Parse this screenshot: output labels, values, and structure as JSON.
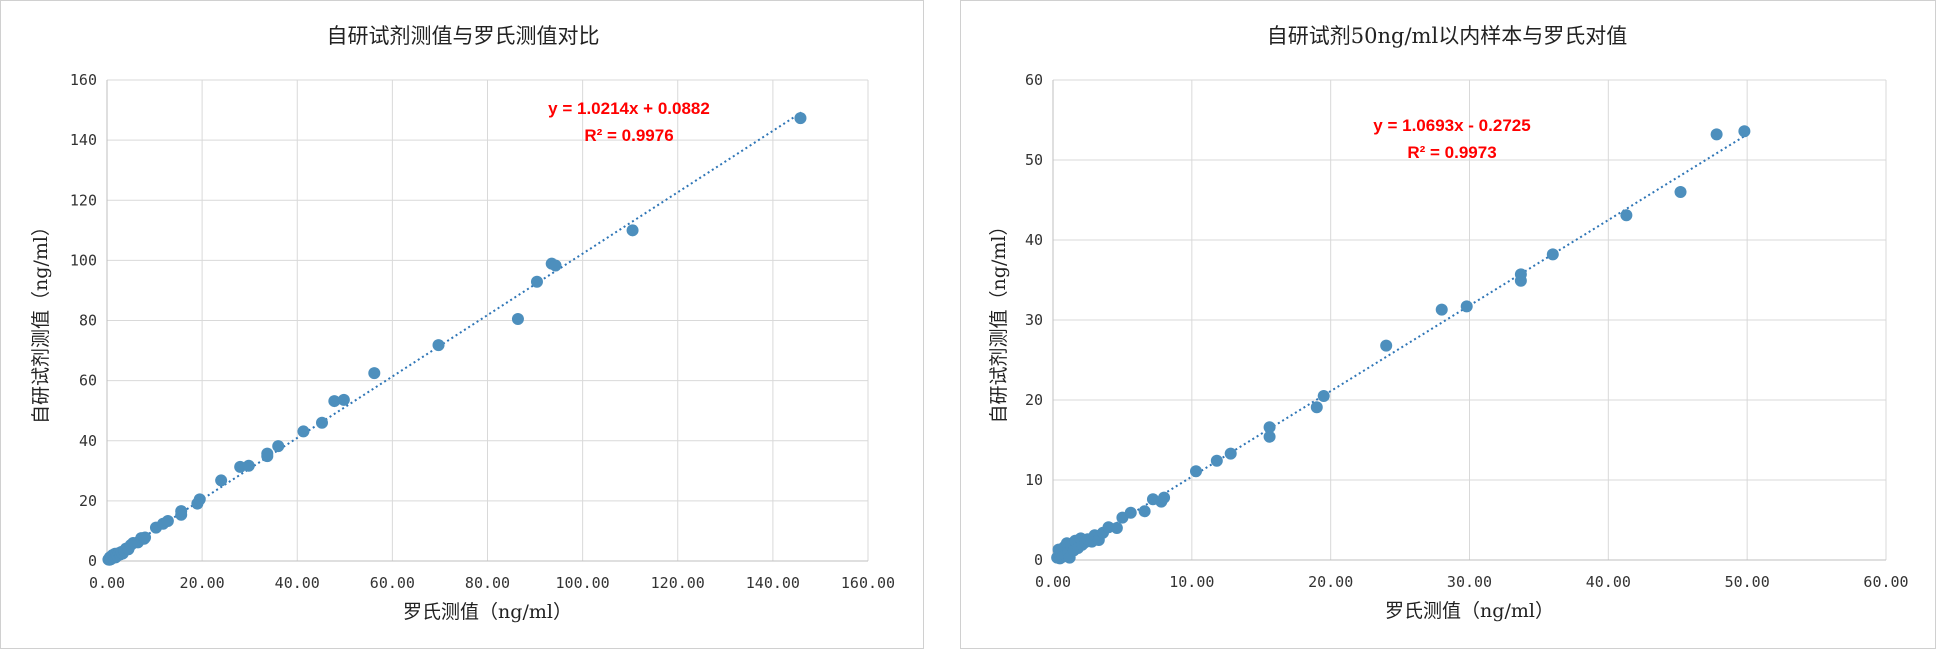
{
  "chart_data": [
    {
      "type": "scatter",
      "title": "自研试剂测值与罗氏测值对比",
      "xlabel": "罗氏测值（ng/ml）",
      "ylabel": "自研试剂测值（ng/ml）",
      "xlim": [
        0,
        160
      ],
      "ylim": [
        0,
        160
      ],
      "xticks": [
        0,
        20,
        40,
        60,
        80,
        100,
        120,
        140,
        160
      ],
      "xtick_labels": [
        "0.00",
        "20.00",
        "40.00",
        "60.00",
        "80.00",
        "100.00",
        "120.00",
        "140.00",
        "160.00"
      ],
      "yticks": [
        0,
        20,
        40,
        60,
        80,
        100,
        120,
        140,
        160
      ],
      "ytick_labels": [
        "0",
        "20",
        "40",
        "60",
        "80",
        "100",
        "120",
        "140",
        "160"
      ],
      "grid": true,
      "trendline": {
        "slope": 1.0214,
        "intercept": 0.0882,
        "x_range": [
          0,
          146
        ]
      },
      "equation": "y = 1.0214x + 0.0882",
      "r_squared": "R² = 0.9976",
      "marker_color": "#4d8fbd",
      "trend_color": "#2e75b6",
      "points": [
        [
          0.3,
          0.5
        ],
        [
          0.5,
          0.4
        ],
        [
          0.6,
          1.2
        ],
        [
          0.8,
          0.6
        ],
        [
          0.9,
          1.5
        ],
        [
          1.0,
          0.9
        ],
        [
          1.2,
          2.0
        ],
        [
          1.3,
          1.1
        ],
        [
          1.5,
          1.6
        ],
        [
          1.7,
          2.4
        ],
        [
          1.8,
          1.2
        ],
        [
          2.0,
          2.2
        ],
        [
          2.2,
          1.8
        ],
        [
          2.5,
          2.6
        ],
        [
          2.8,
          2.2
        ],
        [
          3.0,
          3.0
        ],
        [
          3.3,
          2.5
        ],
        [
          3.6,
          3.3
        ],
        [
          4.0,
          4.1
        ],
        [
          4.5,
          3.9
        ],
        [
          5.0,
          5.3
        ],
        [
          5.5,
          6.0
        ],
        [
          6.5,
          6.2
        ],
        [
          7.2,
          7.6
        ],
        [
          7.8,
          7.4
        ],
        [
          8.0,
          7.8
        ],
        [
          10.3,
          11.1
        ],
        [
          11.8,
          12.4
        ],
        [
          12.8,
          13.3
        ],
        [
          15.6,
          15.4
        ],
        [
          15.6,
          16.6
        ],
        [
          19.0,
          19.1
        ],
        [
          19.5,
          20.5
        ],
        [
          24.0,
          26.8
        ],
        [
          28.0,
          31.3
        ],
        [
          29.8,
          31.7
        ],
        [
          33.7,
          34.9
        ],
        [
          33.7,
          35.7
        ],
        [
          36.0,
          38.2
        ],
        [
          41.3,
          43.1
        ],
        [
          45.2,
          46.0
        ],
        [
          47.8,
          53.2
        ],
        [
          49.8,
          53.6
        ],
        [
          56.2,
          62.5
        ],
        [
          69.7,
          71.8
        ],
        [
          86.4,
          80.5
        ],
        [
          90.4,
          92.9
        ],
        [
          93.5,
          98.9
        ],
        [
          94.3,
          98.3
        ],
        [
          110.5,
          110.0
        ],
        [
          145.8,
          147.3
        ]
      ]
    },
    {
      "type": "scatter",
      "title": "自研试剂50ng/ml以内样本与罗氏对值",
      "xlabel": "罗氏测值（ng/ml）",
      "ylabel": "自研试剂测值（ng/ml）",
      "xlim": [
        0,
        60
      ],
      "ylim": [
        0,
        60
      ],
      "xticks": [
        0,
        10,
        20,
        30,
        40,
        50,
        60
      ],
      "xtick_labels": [
        "0.00",
        "10.00",
        "20.00",
        "30.00",
        "40.00",
        "50.00",
        "60.00"
      ],
      "yticks": [
        0,
        10,
        20,
        30,
        40,
        50,
        60
      ],
      "ytick_labels": [
        "0",
        "10",
        "20",
        "30",
        "40",
        "50",
        "60"
      ],
      "grid": true,
      "trendline": {
        "slope": 1.0693,
        "intercept": -0.2725,
        "x_range": [
          0.26,
          50
        ]
      },
      "equation": "y = 1.0693x - 0.2725",
      "r_squared": "R² = 0.9973",
      "marker_color": "#4d8fbd",
      "trend_color": "#2e75b6",
      "points": [
        [
          0.3,
          0.3
        ],
        [
          0.4,
          1.3
        ],
        [
          0.5,
          0.2
        ],
        [
          0.6,
          0.9
        ],
        [
          0.7,
          0.4
        ],
        [
          0.8,
          1.6
        ],
        [
          0.9,
          0.6
        ],
        [
          1.0,
          2.1
        ],
        [
          1.1,
          1.0
        ],
        [
          1.2,
          0.3
        ],
        [
          1.3,
          1.8
        ],
        [
          1.5,
          1.2
        ],
        [
          1.6,
          2.4
        ],
        [
          1.8,
          1.5
        ],
        [
          2.0,
          2.7
        ],
        [
          2.1,
          1.9
        ],
        [
          2.3,
          2.2
        ],
        [
          2.5,
          2.6
        ],
        [
          2.8,
          2.3
        ],
        [
          3.0,
          3.1
        ],
        [
          3.3,
          2.5
        ],
        [
          3.6,
          3.4
        ],
        [
          4.0,
          4.1
        ],
        [
          4.6,
          4.0
        ],
        [
          5.0,
          5.3
        ],
        [
          5.6,
          5.9
        ],
        [
          6.6,
          6.1
        ],
        [
          7.2,
          7.6
        ],
        [
          7.8,
          7.3
        ],
        [
          8.0,
          7.8
        ],
        [
          10.3,
          11.1
        ],
        [
          11.8,
          12.4
        ],
        [
          12.8,
          13.3
        ],
        [
          15.6,
          15.4
        ],
        [
          15.6,
          16.6
        ],
        [
          19.0,
          19.1
        ],
        [
          19.5,
          20.5
        ],
        [
          24.0,
          26.8
        ],
        [
          28.0,
          31.3
        ],
        [
          29.8,
          31.7
        ],
        [
          33.7,
          34.9
        ],
        [
          33.7,
          35.7
        ],
        [
          36.0,
          38.2
        ],
        [
          41.3,
          43.1
        ],
        [
          45.2,
          46.0
        ],
        [
          47.8,
          53.2
        ],
        [
          49.8,
          53.6
        ]
      ]
    }
  ]
}
